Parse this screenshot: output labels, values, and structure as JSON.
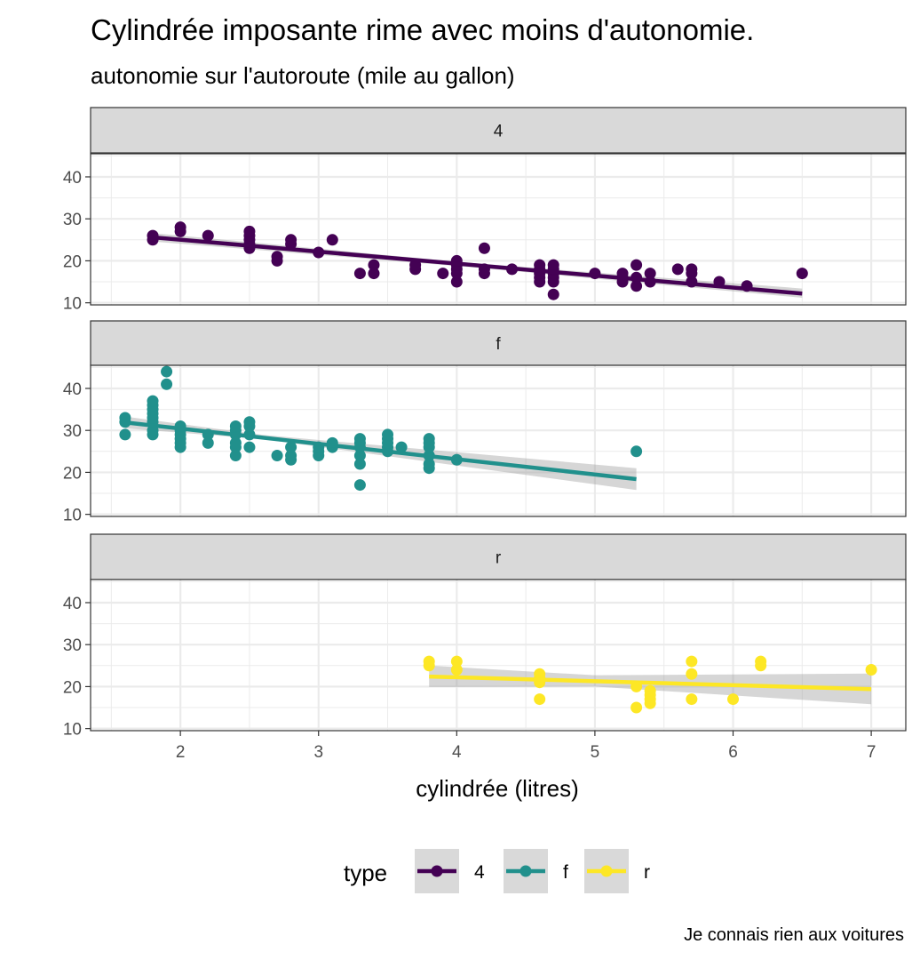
{
  "title": "Cylindrée imposante rime avec moins d'autonomie.",
  "subtitle": "autonomie sur l'autoroute (mile au gallon)",
  "caption": "Je connais rien aux voitures",
  "chart_data": {
    "type": "scatter",
    "facet_by": "type",
    "xlabel": "cylindrée (litres)",
    "ylabel": "",
    "xlim": [
      1.35,
      7.25
    ],
    "ylim": [
      9.5,
      45.5
    ],
    "x_ticks": [
      2,
      3,
      4,
      5,
      6,
      7
    ],
    "y_ticks": [
      10,
      20,
      30,
      40
    ],
    "grid": true,
    "legend": {
      "title": "type",
      "position": "bottom"
    },
    "series": [
      {
        "name": "4",
        "color": "#440154",
        "points": [
          [
            1.8,
            25
          ],
          [
            1.8,
            26
          ],
          [
            2.0,
            27
          ],
          [
            2.0,
            28
          ],
          [
            2.2,
            26
          ],
          [
            2.5,
            23
          ],
          [
            2.5,
            24
          ],
          [
            2.5,
            25
          ],
          [
            2.5,
            26
          ],
          [
            2.5,
            27
          ],
          [
            2.7,
            20
          ],
          [
            2.7,
            21
          ],
          [
            2.8,
            24
          ],
          [
            2.8,
            25
          ],
          [
            3.0,
            22
          ],
          [
            3.1,
            25
          ],
          [
            3.3,
            17
          ],
          [
            3.4,
            17
          ],
          [
            3.4,
            19
          ],
          [
            3.7,
            18
          ],
          [
            3.7,
            19
          ],
          [
            3.9,
            17
          ],
          [
            4.0,
            15
          ],
          [
            4.0,
            17
          ],
          [
            4.0,
            18
          ],
          [
            4.0,
            19
          ],
          [
            4.0,
            20
          ],
          [
            4.2,
            17
          ],
          [
            4.2,
            18
          ],
          [
            4.2,
            23
          ],
          [
            4.4,
            18
          ],
          [
            4.6,
            15
          ],
          [
            4.6,
            16
          ],
          [
            4.6,
            17
          ],
          [
            4.6,
            18
          ],
          [
            4.6,
            19
          ],
          [
            4.7,
            12
          ],
          [
            4.7,
            15
          ],
          [
            4.7,
            16
          ],
          [
            4.7,
            17
          ],
          [
            4.7,
            18
          ],
          [
            4.7,
            19
          ],
          [
            5.0,
            17
          ],
          [
            5.2,
            15
          ],
          [
            5.2,
            16
          ],
          [
            5.2,
            17
          ],
          [
            5.3,
            14
          ],
          [
            5.3,
            16
          ],
          [
            5.3,
            19
          ],
          [
            5.4,
            15
          ],
          [
            5.4,
            17
          ],
          [
            5.6,
            18
          ],
          [
            5.7,
            15
          ],
          [
            5.7,
            17
          ],
          [
            5.7,
            18
          ],
          [
            5.9,
            15
          ],
          [
            6.1,
            14
          ],
          [
            6.5,
            17
          ]
        ],
        "trend": {
          "x": [
            1.8,
            6.5
          ],
          "y": [
            25.6,
            12.2
          ]
        },
        "ribbon": {
          "x": [
            1.8,
            4.1,
            6.5
          ],
          "lower": [
            24.6,
            18.5,
            11.2
          ],
          "upper": [
            26.6,
            19.5,
            13.4
          ]
        }
      },
      {
        "name": "f",
        "color": "#21908C",
        "points": [
          [
            1.6,
            29
          ],
          [
            1.6,
            32
          ],
          [
            1.6,
            33
          ],
          [
            1.8,
            29
          ],
          [
            1.8,
            30
          ],
          [
            1.8,
            32
          ],
          [
            1.8,
            33
          ],
          [
            1.8,
            34
          ],
          [
            1.8,
            35
          ],
          [
            1.8,
            36
          ],
          [
            1.8,
            37
          ],
          [
            1.9,
            41
          ],
          [
            1.9,
            44
          ],
          [
            2.0,
            26
          ],
          [
            2.0,
            27
          ],
          [
            2.0,
            28
          ],
          [
            2.0,
            29
          ],
          [
            2.0,
            30
          ],
          [
            2.0,
            31
          ],
          [
            2.2,
            27
          ],
          [
            2.2,
            29
          ],
          [
            2.4,
            24
          ],
          [
            2.4,
            26
          ],
          [
            2.4,
            27
          ],
          [
            2.4,
            29
          ],
          [
            2.4,
            30
          ],
          [
            2.4,
            31
          ],
          [
            2.5,
            26
          ],
          [
            2.5,
            29
          ],
          [
            2.5,
            31
          ],
          [
            2.5,
            32
          ],
          [
            2.7,
            24
          ],
          [
            2.8,
            23
          ],
          [
            2.8,
            24
          ],
          [
            2.8,
            26
          ],
          [
            3.0,
            24
          ],
          [
            3.0,
            25
          ],
          [
            3.0,
            26
          ],
          [
            3.1,
            26
          ],
          [
            3.1,
            27
          ],
          [
            3.3,
            17
          ],
          [
            3.3,
            22
          ],
          [
            3.3,
            24
          ],
          [
            3.3,
            26
          ],
          [
            3.3,
            27
          ],
          [
            3.3,
            28
          ],
          [
            3.5,
            25
          ],
          [
            3.5,
            26
          ],
          [
            3.5,
            27
          ],
          [
            3.5,
            28
          ],
          [
            3.5,
            29
          ],
          [
            3.6,
            26
          ],
          [
            3.8,
            21
          ],
          [
            3.8,
            22
          ],
          [
            3.8,
            24
          ],
          [
            3.8,
            26
          ],
          [
            3.8,
            27
          ],
          [
            3.8,
            28
          ],
          [
            4.0,
            23
          ],
          [
            5.3,
            25
          ]
        ],
        "trend": {
          "x": [
            1.6,
            5.3
          ],
          "y": [
            31.9,
            18.4
          ]
        },
        "ribbon": {
          "x": [
            1.6,
            2.6,
            5.3
          ],
          "lower": [
            30.5,
            27.9,
            15.8
          ],
          "upper": [
            33.3,
            28.9,
            21.0
          ]
        }
      },
      {
        "name": "r",
        "color": "#FDE725",
        "points": [
          [
            3.8,
            25
          ],
          [
            3.8,
            26
          ],
          [
            4.0,
            24
          ],
          [
            4.0,
            26
          ],
          [
            4.6,
            17
          ],
          [
            4.6,
            21
          ],
          [
            4.6,
            22
          ],
          [
            4.6,
            23
          ],
          [
            5.3,
            15
          ],
          [
            5.3,
            20
          ],
          [
            5.4,
            16
          ],
          [
            5.4,
            17
          ],
          [
            5.4,
            18
          ],
          [
            5.4,
            19
          ],
          [
            5.7,
            17
          ],
          [
            5.7,
            23
          ],
          [
            5.7,
            26
          ],
          [
            6.0,
            17
          ],
          [
            6.2,
            25
          ],
          [
            6.2,
            26
          ],
          [
            7.0,
            24
          ]
        ],
        "trend": {
          "x": [
            3.8,
            7.0
          ],
          "y": [
            22.4,
            19.4
          ]
        },
        "ribbon": {
          "x": [
            3.8,
            5.0,
            7.0
          ],
          "lower": [
            19.9,
            20.0,
            15.8
          ],
          "upper": [
            25.0,
            22.7,
            23.1
          ]
        }
      }
    ]
  }
}
